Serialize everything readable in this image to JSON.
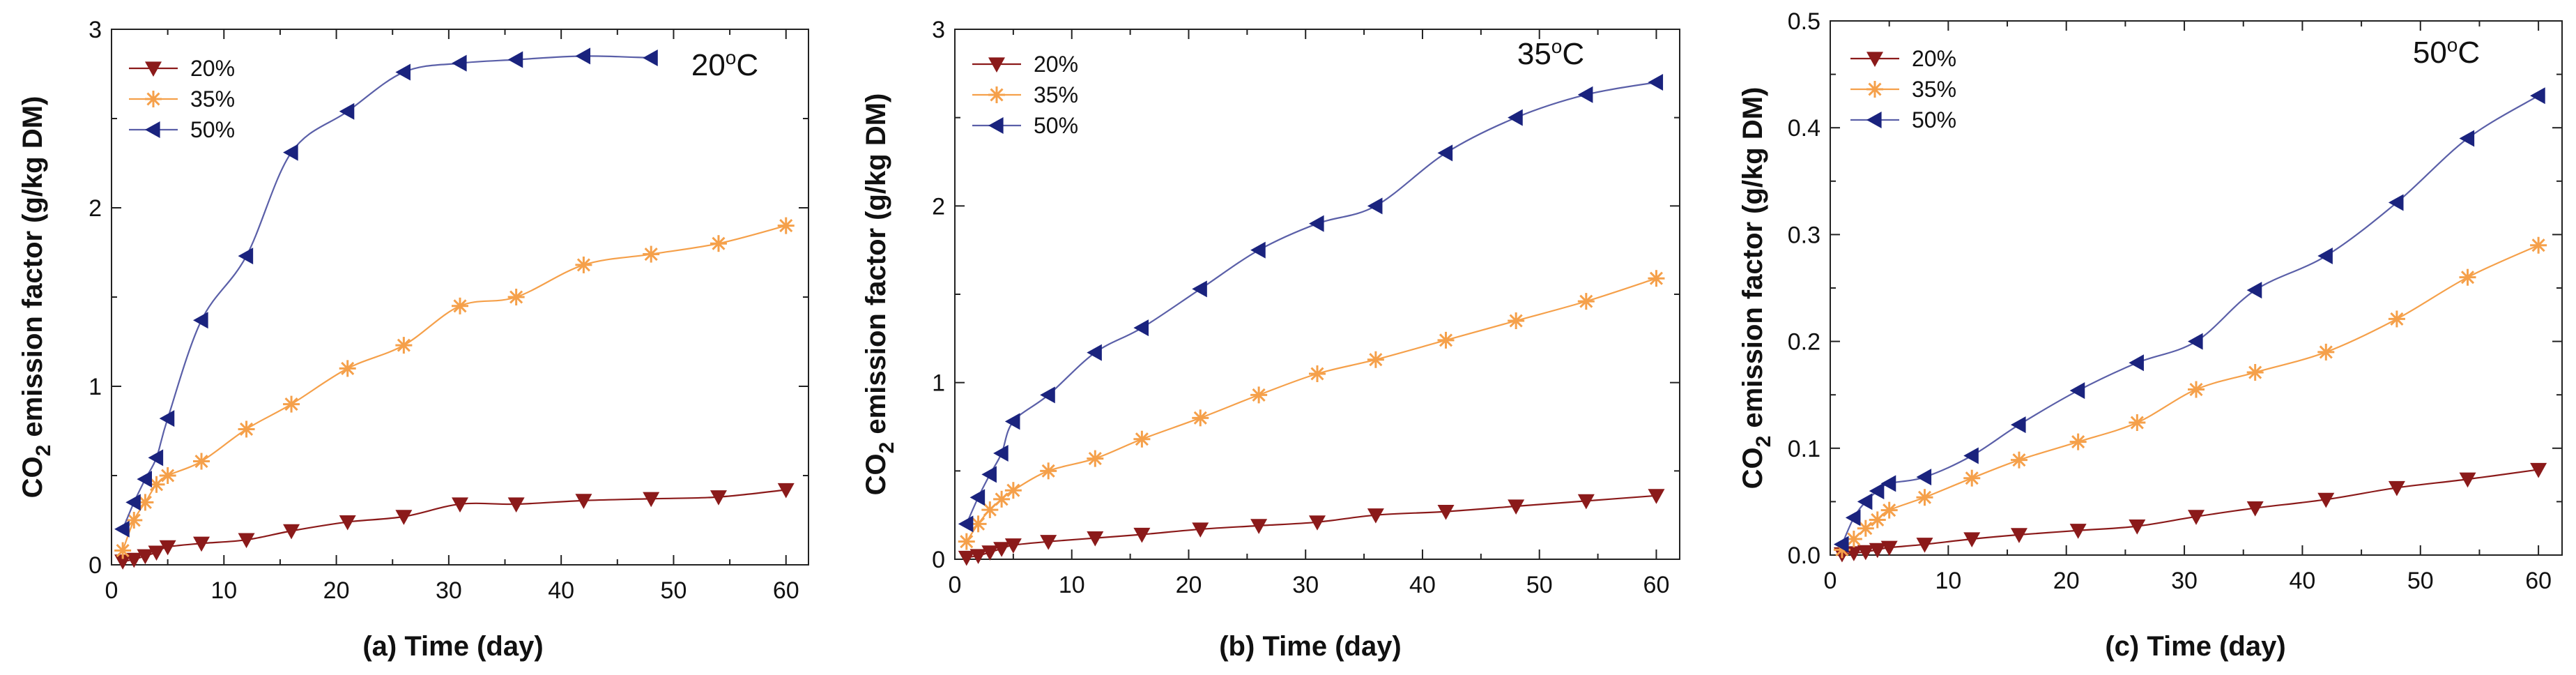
{
  "colors": {
    "s20": "#8b1a1a",
    "s35": "#f5a04a",
    "s50": "#1a237e",
    "line50": "#5a5fa8",
    "line35": "#f5a04a",
    "line20": "#8b1a1a"
  },
  "chart_data": [
    {
      "type": "line",
      "panel": "(a)",
      "xlabel": "Time (day)",
      "ylabel_main": "CO",
      "ylabel_sub": "2",
      "ylabel_rest": " emission factor (g/kg DM)",
      "temperature": "20",
      "temperature_unit": "oC",
      "xlim": [
        0,
        62
      ],
      "ylim": [
        0,
        3
      ],
      "xticks": [
        "0",
        "10",
        "20",
        "30",
        "40",
        "50",
        "60"
      ],
      "yticks": [
        "0",
        "1",
        "2",
        "3"
      ],
      "series": [
        {
          "name": "20%",
          "marker": "triangle-down",
          "x": [
            1,
            2,
            3,
            4,
            5,
            8,
            12,
            16,
            21,
            26,
            31,
            36,
            42,
            48,
            54,
            60
          ],
          "y": [
            0.02,
            0.03,
            0.05,
            0.07,
            0.1,
            0.12,
            0.14,
            0.19,
            0.24,
            0.27,
            0.34,
            0.34,
            0.36,
            0.37,
            0.38,
            0.42
          ]
        },
        {
          "name": "35%",
          "marker": "star",
          "x": [
            1,
            2,
            3,
            4,
            5,
            8,
            12,
            16,
            21,
            26,
            31,
            36,
            42,
            48,
            54,
            60
          ],
          "y": [
            0.08,
            0.25,
            0.35,
            0.45,
            0.5,
            0.58,
            0.76,
            0.9,
            1.1,
            1.23,
            1.45,
            1.5,
            1.68,
            1.74,
            1.8,
            1.9
          ]
        },
        {
          "name": "50%",
          "marker": "triangle-left",
          "x": [
            1,
            2,
            3,
            4,
            5,
            8,
            12,
            16,
            21,
            26,
            31,
            36,
            42,
            48
          ],
          "y": [
            0.2,
            0.35,
            0.48,
            0.6,
            0.82,
            1.37,
            1.73,
            2.31,
            2.54,
            2.76,
            2.81,
            2.83,
            2.85,
            2.84
          ]
        }
      ]
    },
    {
      "type": "line",
      "panel": "(b)",
      "xlabel": "Time (day)",
      "ylabel_main": "CO",
      "ylabel_sub": "2",
      "ylabel_rest": " emission factor (g/kg DM)",
      "temperature": "35",
      "temperature_unit": "oC",
      "xlim": [
        0,
        62
      ],
      "ylim": [
        0,
        3
      ],
      "xticks": [
        "0",
        "10",
        "20",
        "30",
        "40",
        "50",
        "60"
      ],
      "yticks": [
        "0",
        "1",
        "2",
        "3"
      ],
      "series": [
        {
          "name": "20%",
          "marker": "triangle-down",
          "x": [
            1,
            2,
            3,
            4,
            5,
            8,
            12,
            16,
            21,
            26,
            31,
            36,
            42,
            48,
            54,
            60
          ],
          "y": [
            0.01,
            0.02,
            0.04,
            0.06,
            0.08,
            0.1,
            0.12,
            0.14,
            0.17,
            0.19,
            0.21,
            0.25,
            0.27,
            0.3,
            0.33,
            0.36
          ]
        },
        {
          "name": "35%",
          "marker": "star",
          "x": [
            1,
            2,
            3,
            4,
            5,
            8,
            12,
            16,
            21,
            26,
            31,
            36,
            42,
            48,
            54,
            60
          ],
          "y": [
            0.1,
            0.2,
            0.28,
            0.34,
            0.39,
            0.5,
            0.57,
            0.68,
            0.8,
            0.93,
            1.05,
            1.13,
            1.24,
            1.35,
            1.46,
            1.59
          ]
        },
        {
          "name": "50%",
          "marker": "triangle-left",
          "x": [
            1,
            2,
            3,
            4,
            5,
            8,
            12,
            16,
            21,
            26,
            31,
            36,
            42,
            48,
            54,
            60
          ],
          "y": [
            0.2,
            0.35,
            0.48,
            0.6,
            0.78,
            0.93,
            1.17,
            1.31,
            1.53,
            1.75,
            1.9,
            2.0,
            2.3,
            2.5,
            2.63,
            2.7
          ]
        }
      ]
    },
    {
      "type": "line",
      "panel": "(c)",
      "xlabel": "Time (day)",
      "ylabel_main": "CO",
      "ylabel_sub": "2",
      "ylabel_rest": " emission factor (g/kg DM)",
      "temperature": "50",
      "temperature_unit": "oC",
      "xlim": [
        0,
        62
      ],
      "ylim": [
        0,
        0.5
      ],
      "xticks": [
        "0",
        "10",
        "20",
        "30",
        "40",
        "50",
        "60"
      ],
      "yticks": [
        "0.0",
        "0.1",
        "0.2",
        "0.3",
        "0.4",
        "0.5"
      ],
      "series": [
        {
          "name": "20%",
          "marker": "triangle-down",
          "x": [
            1,
            2,
            3,
            4,
            5,
            8,
            12,
            16,
            21,
            26,
            31,
            36,
            42,
            48,
            54,
            60
          ],
          "y": [
            0.001,
            0.002,
            0.003,
            0.005,
            0.007,
            0.01,
            0.015,
            0.019,
            0.023,
            0.027,
            0.036,
            0.044,
            0.052,
            0.063,
            0.071,
            0.08
          ]
        },
        {
          "name": "35%",
          "marker": "star",
          "x": [
            1,
            2,
            3,
            4,
            5,
            8,
            12,
            16,
            21,
            26,
            31,
            36,
            42,
            48,
            54,
            60
          ],
          "y": [
            0.005,
            0.015,
            0.025,
            0.033,
            0.042,
            0.054,
            0.072,
            0.089,
            0.106,
            0.124,
            0.155,
            0.171,
            0.19,
            0.221,
            0.26,
            0.29
          ]
        },
        {
          "name": "50%",
          "marker": "triangle-left",
          "x": [
            1,
            2,
            3,
            4,
            5,
            8,
            12,
            16,
            21,
            26,
            31,
            36,
            42,
            48,
            54,
            60
          ],
          "y": [
            0.01,
            0.035,
            0.05,
            0.06,
            0.067,
            0.073,
            0.093,
            0.122,
            0.154,
            0.18,
            0.2,
            0.248,
            0.28,
            0.33,
            0.39,
            0.43
          ]
        }
      ]
    }
  ]
}
